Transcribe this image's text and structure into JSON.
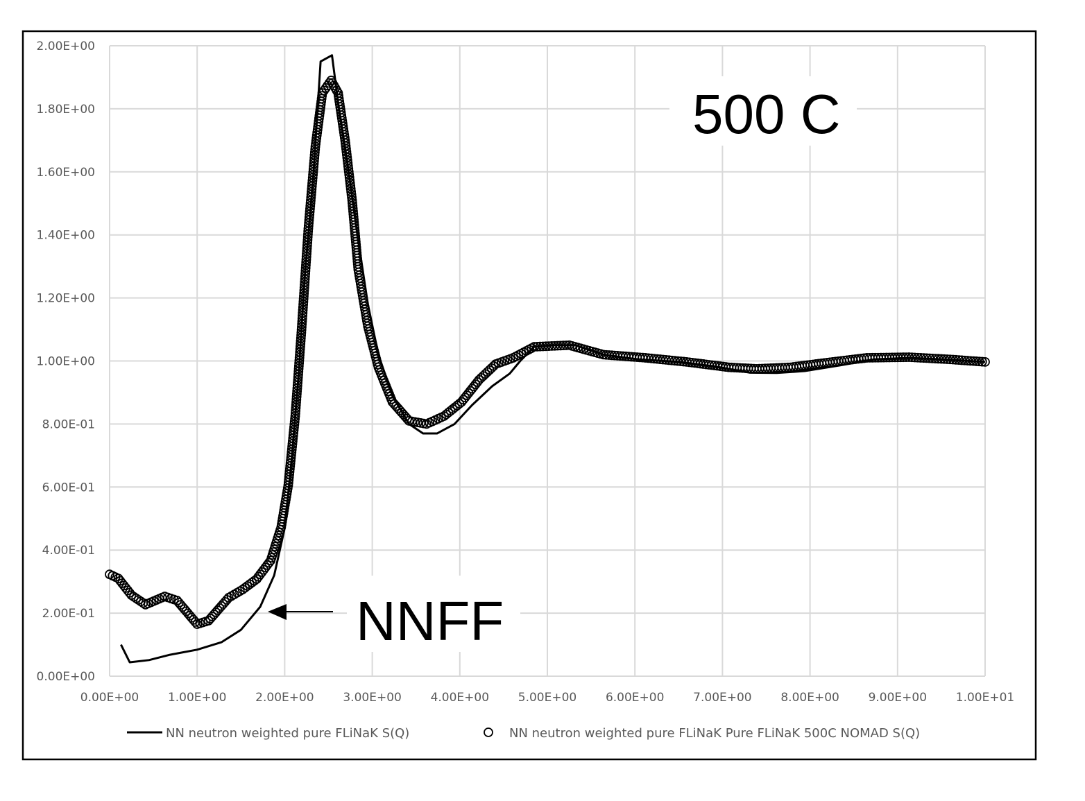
{
  "chart_data": {
    "type": "line",
    "title": "",
    "xlabel": "",
    "ylabel": "",
    "xlim": [
      0,
      10
    ],
    "ylim": [
      0,
      2
    ],
    "grid": true,
    "legend_position": "bottom",
    "x_ticks": [
      "0.00E+00",
      "1.00E+00",
      "2.00E+00",
      "3.00E+00",
      "4.00E+00",
      "5.00E+00",
      "6.00E+00",
      "7.00E+00",
      "8.00E+00",
      "9.00E+00",
      "1.00E+01"
    ],
    "y_ticks": [
      "0.00E+00",
      "2.00E-01",
      "4.00E-01",
      "6.00E-01",
      "8.00E-01",
      "1.00E+00",
      "1.20E+00",
      "1.40E+00",
      "1.60E+00",
      "1.80E+00",
      "2.00E+00"
    ],
    "annotations": {
      "temperature": "500 C",
      "arrow_label": "NNFF"
    },
    "series": [
      {
        "name": "NN neutron weighted pure FLiNaK S(Q)",
        "style": "line",
        "color": "#000000",
        "x": [
          0.13,
          0.23,
          0.45,
          0.69,
          1.0,
          1.28,
          1.5,
          1.72,
          1.88,
          2.0,
          2.08,
          2.16,
          2.23,
          2.33,
          2.41,
          2.54,
          2.61,
          2.71,
          2.83,
          2.95,
          3.07,
          3.23,
          3.42,
          3.58,
          3.74,
          3.94,
          4.14,
          4.37,
          4.57,
          4.69,
          4.85,
          5.09,
          5.32,
          5.64,
          6.04,
          6.51,
          6.91,
          7.31,
          7.62,
          7.94,
          8.34,
          8.73,
          9.13,
          9.52,
          10.0
        ],
        "y": [
          0.1,
          0.044,
          0.051,
          0.068,
          0.084,
          0.108,
          0.147,
          0.22,
          0.32,
          0.47,
          0.69,
          0.96,
          1.27,
          1.6,
          1.95,
          1.97,
          1.82,
          1.64,
          1.4,
          1.18,
          1.02,
          0.89,
          0.8,
          0.77,
          0.77,
          0.8,
          0.86,
          0.92,
          0.96,
          1.0,
          1.045,
          1.05,
          1.05,
          1.02,
          1.005,
          0.997,
          0.983,
          0.963,
          0.962,
          0.968,
          0.986,
          1.005,
          1.01,
          1.005,
          0.997
        ]
      },
      {
        "name": "NN neutron weighted pure FLiNaK Pure FLiNaK 500C NOMAD S(Q)",
        "style": "markers",
        "marker": "open-circle",
        "color": "#000000",
        "x": [
          0,
          0.1,
          0.25,
          0.41,
          0.63,
          0.77,
          1.0,
          1.13,
          1.36,
          1.52,
          1.68,
          1.84,
          1.96,
          2.04,
          2.12,
          2.19,
          2.27,
          2.35,
          2.43,
          2.53,
          2.61,
          2.69,
          2.77,
          2.84,
          2.95,
          3.07,
          3.23,
          3.42,
          3.62,
          3.82,
          4.02,
          4.22,
          4.41,
          4.61,
          4.85,
          5.25,
          5.64,
          6.12,
          6.59,
          7.07,
          7.39,
          7.78,
          8.26,
          8.65,
          9.13,
          9.6,
          10.0
        ],
        "y": [
          0.323,
          0.31,
          0.257,
          0.227,
          0.253,
          0.24,
          0.165,
          0.176,
          0.249,
          0.275,
          0.308,
          0.367,
          0.473,
          0.605,
          0.825,
          1.09,
          1.42,
          1.68,
          1.85,
          1.89,
          1.85,
          1.7,
          1.51,
          1.29,
          1.11,
          0.98,
          0.87,
          0.81,
          0.8,
          0.825,
          0.87,
          0.94,
          0.99,
          1.01,
          1.045,
          1.05,
          1.02,
          1.01,
          0.997,
          0.98,
          0.975,
          0.98,
          0.997,
          1.01,
          1.012,
          1.005,
          0.997
        ]
      }
    ]
  }
}
